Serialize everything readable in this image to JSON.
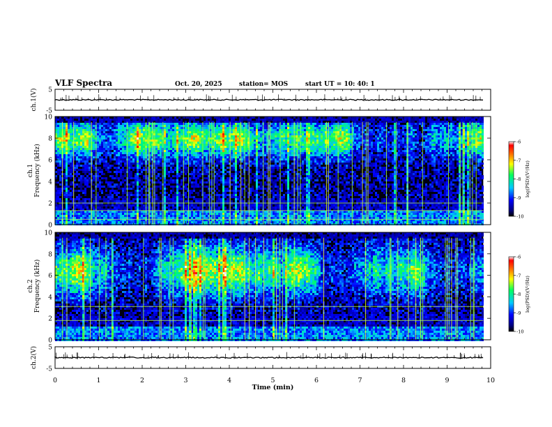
{
  "header": {
    "title": "VLF Spectra",
    "date": "Oct. 20, 2025",
    "station": "station= MOS",
    "start": "start  UT  =   10: 40: 1"
  },
  "chart_data": [
    {
      "type": "line",
      "name": "ch1-waveform",
      "ylabel": "ch.1(V)",
      "ylim": [
        -5,
        5
      ],
      "yticks": [
        "5",
        "-5"
      ],
      "xlim": [
        0,
        10
      ]
    },
    {
      "type": "heatmap",
      "name": "ch1-spectrogram",
      "ylabel_line1": "ch.1",
      "ylabel_line2": "Frequency (kHz)",
      "ylim": [
        0,
        10
      ],
      "yticks": [
        "0",
        "2",
        "4",
        "6",
        "8",
        "10"
      ],
      "xlim": [
        0,
        10
      ],
      "data_end_min": 9.83,
      "intense_band_khz": [
        6.5,
        9.5
      ],
      "lines_khz": [
        0.5,
        1.3,
        2.0
      ],
      "colorbar": {
        "label": "log(PSD)(V²/Hz)",
        "ticks": [
          "-6",
          "-7",
          "-8",
          "-9",
          "-10"
        ],
        "range": [
          -10,
          -6
        ]
      }
    },
    {
      "type": "heatmap",
      "name": "ch2-spectrogram",
      "ylabel_line1": "ch.2",
      "ylabel_line2": "Frequency (kHz)",
      "ylim": [
        0,
        10
      ],
      "yticks": [
        "0",
        "2",
        "4",
        "6",
        "8",
        "10"
      ],
      "xlim": [
        0,
        10
      ],
      "data_end_min": 9.83,
      "intense_band_khz": [
        4.5,
        8.5
      ],
      "lines_khz": [
        3.1,
        1.8
      ],
      "colorbar": {
        "label": "log(PSD)(V²/Hz)",
        "ticks": [
          "-6",
          "-7",
          "-8",
          "-9",
          "-10"
        ],
        "range": [
          -10,
          -6
        ]
      }
    },
    {
      "type": "line",
      "name": "ch2-waveform",
      "ylabel": "ch.2(V)",
      "ylim": [
        -5,
        5
      ],
      "yticks": [
        "5",
        "-5"
      ],
      "xlim": [
        0,
        10
      ]
    }
  ],
  "xaxis": {
    "label": "Time (min)",
    "ticks": [
      "0",
      "1",
      "2",
      "3",
      "4",
      "5",
      "6",
      "7",
      "8",
      "9",
      "10"
    ]
  }
}
